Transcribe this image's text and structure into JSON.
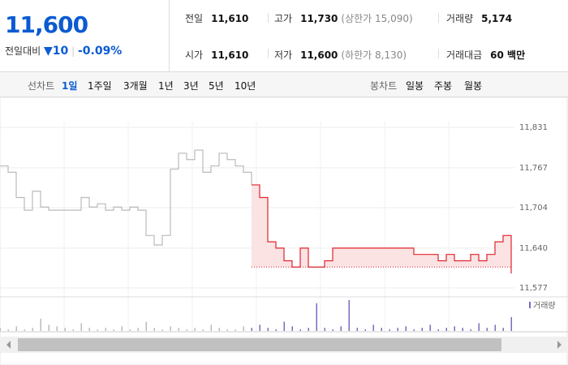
{
  "header": {
    "price": "11,600",
    "change_label": "전일대비",
    "change": "▼10",
    "change_rate": "-0.09%",
    "items": [
      {
        "label": "전일",
        "value": "11,610"
      },
      {
        "label": "고가",
        "value": "11,730",
        "note": "(상한가 15,090)"
      },
      {
        "label": "거래량",
        "value": "5,174"
      },
      {
        "label": "시가",
        "value": "11,610"
      },
      {
        "label": "저가",
        "value": "11,600",
        "note": "(하한가 8,130)"
      },
      {
        "label": "거래대금",
        "value": "60 백만"
      }
    ]
  },
  "tabs": {
    "line_label": "선차트",
    "line_periods": [
      "1일",
      "1주일",
      "3개월",
      "1년",
      "3년",
      "5년",
      "10년"
    ],
    "selected": 0,
    "candle_label": "봉차트",
    "candle_periods": [
      "일봉",
      "주봉",
      "월봉"
    ]
  },
  "chart_data": {
    "type": "line",
    "baseline": 11610,
    "ylim": [
      11577,
      11831
    ],
    "yticks": [
      {
        "value": 11831,
        "label": "11,831"
      },
      {
        "value": 11767,
        "label": "11,767"
      },
      {
        "value": 11704,
        "label": "11,704"
      },
      {
        "value": 11640,
        "label": "11,640"
      },
      {
        "value": 11577,
        "label": "11,577"
      }
    ],
    "series": [
      {
        "color": "#bbbbbb",
        "values": [
          11770,
          11760,
          11720,
          11700,
          11730,
          11705,
          11700,
          11700,
          11700,
          11700,
          11720,
          11705,
          11710,
          11700,
          11705,
          11700,
          11705,
          11700,
          11660,
          11645,
          11660,
          11765,
          11790,
          11780,
          11795,
          11760,
          11770,
          11790,
          11780,
          11770,
          11760,
          11740,
          null,
          null,
          null,
          null,
          null,
          null,
          null,
          null,
          null,
          null,
          null,
          null,
          null,
          null,
          null,
          null,
          null,
          null,
          null,
          null,
          null,
          null,
          null,
          null,
          null,
          null,
          null,
          null,
          null,
          null,
          null,
          null
        ]
      },
      {
        "color": "#e0242c",
        "fill": "#fbe3e4",
        "values": [
          null,
          null,
          null,
          null,
          null,
          null,
          null,
          null,
          null,
          null,
          null,
          null,
          null,
          null,
          null,
          null,
          null,
          null,
          null,
          null,
          null,
          null,
          null,
          null,
          null,
          null,
          null,
          null,
          null,
          null,
          null,
          11740,
          11720,
          11650,
          11640,
          11620,
          11610,
          11640,
          11610,
          11610,
          11620,
          11640,
          11640,
          11640,
          11640,
          11640,
          11640,
          11640,
          11640,
          11640,
          11640,
          11630,
          11630,
          11630,
          11620,
          11630,
          11620,
          11620,
          11630,
          11620,
          11630,
          11650,
          11660,
          11600
        ]
      }
    ],
    "volume": {
      "label": "거래량",
      "color": "#7b6bbf",
      "values": [
        2,
        1,
        3,
        1,
        2,
        8,
        4,
        3,
        2,
        1,
        5,
        2,
        1,
        2,
        1,
        3,
        1,
        2,
        6,
        2,
        1,
        3,
        2,
        1,
        2,
        1,
        4,
        2,
        1,
        1,
        3,
        2,
        4,
        2,
        1,
        6,
        3,
        1,
        2,
        18,
        2,
        1,
        3,
        20,
        2,
        1,
        4,
        2,
        1,
        2,
        3,
        1,
        2,
        4,
        1,
        2,
        3,
        2,
        1,
        5,
        2,
        4,
        2,
        9
      ]
    }
  }
}
